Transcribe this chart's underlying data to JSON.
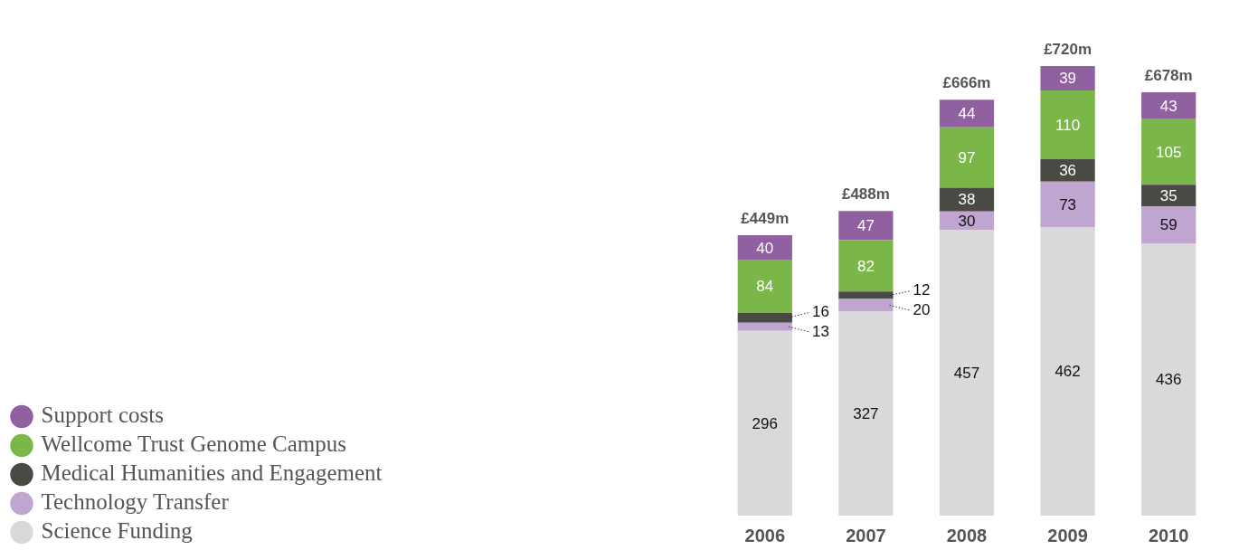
{
  "chart_data": {
    "type": "bar",
    "stacked": true,
    "data_labels": true,
    "legend": "bottom left",
    "categories": [
      "2006",
      "2007",
      "2008",
      "2009",
      "2010"
    ],
    "totals": [
      "£449m",
      "£488m",
      "£666m",
      "£720m",
      "£678m"
    ],
    "series": [
      {
        "name": "Science Funding",
        "color": "#d9d9db",
        "values": [
          296,
          327,
          457,
          462,
          436
        ]
      },
      {
        "name": "Technology Transfer",
        "color": "#bfa5cf",
        "values": [
          13,
          20,
          30,
          73,
          59
        ]
      },
      {
        "name": "Medical Humanities and Engagement",
        "color": "#4a4a45",
        "values": [
          16,
          12,
          38,
          36,
          35
        ]
      },
      {
        "name": "Wellcome Trust Genome Campus",
        "color": "#7ab648",
        "values": [
          84,
          82,
          97,
          110,
          105
        ]
      },
      {
        "name": "Support costs",
        "color": "#9060a0",
        "values": [
          40,
          47,
          44,
          39,
          43
        ]
      }
    ]
  }
}
